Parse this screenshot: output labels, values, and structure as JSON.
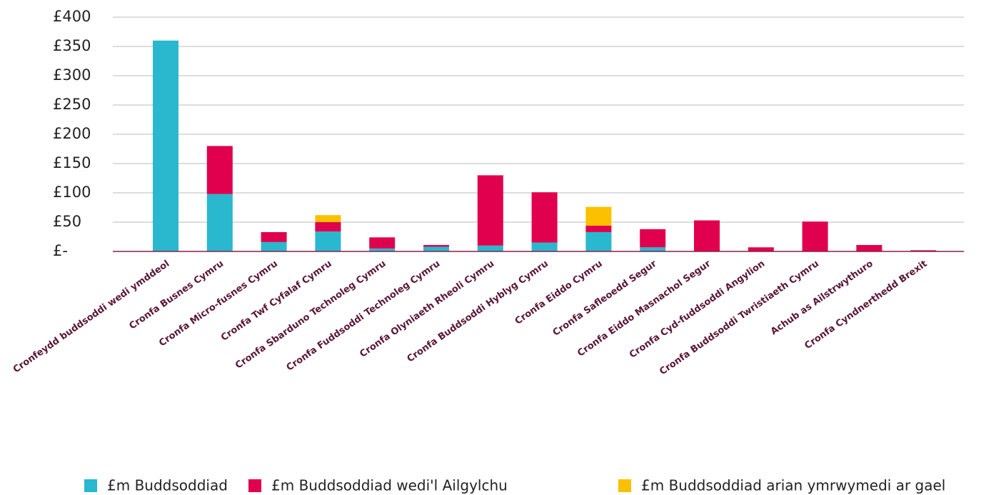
{
  "chart_data": {
    "type": "stacked_bar",
    "categories": [
      "Cronfeydd buddsoddi wedi ymddeol",
      "Cronfa Busnes Cymru",
      "Cronfa Micro-fusnes Cymru",
      "Cronfa Twf Cyfalaf Cymru",
      "Cronfa Sbarduno Technoleg Cymru",
      "Cronfa Fuddsoddi Technoleg Cymru",
      "Cronfa Olyniaeth Rheoli Cymru",
      "Cronfa Buddsoddi Hyblyg Cymru",
      "Cronfa Eiddo Cymru",
      "Cronfa Safleoedd Segur",
      "Cronfa Eiddo Masnachol Segur",
      "Cronfa Cyd-fuddsoddi Angylion",
      "Cronfa Buddsoddi Twristiaeth Cymru",
      "Achub as Ailstrwythuro",
      "Cronfa Cyndnerthedd Brexit"
    ],
    "series": [
      {
        "name": "£m Buddsoddiad",
        "color": "#29b8ce",
        "values": [
          360,
          98,
          16,
          34,
          5,
          8,
          10,
          15,
          33,
          7,
          0,
          0,
          0,
          0,
          0
        ]
      },
      {
        "name": "£m Buddsoddiad wedi'l Ailgylchu",
        "color": "#e0004d",
        "values": [
          0,
          82,
          17,
          16,
          19,
          3,
          120,
          86,
          11,
          31,
          53,
          7,
          51,
          11,
          2
        ]
      },
      {
        "name": "£m Buddsoddiad arian ymrwymedi ar gael",
        "color": "#fcc000",
        "values": [
          0,
          0,
          0,
          12,
          0,
          0,
          0,
          0,
          32,
          0,
          0,
          0,
          0,
          0,
          0
        ]
      }
    ],
    "ylim": [
      0,
      400
    ],
    "yticks": [
      {
        "value": 0,
        "label": "£-"
      },
      {
        "value": 50,
        "label": "£50"
      },
      {
        "value": 100,
        "label": "£100"
      },
      {
        "value": 150,
        "label": "£150"
      },
      {
        "value": 200,
        "label": "£200"
      },
      {
        "value": 250,
        "label": "£250"
      },
      {
        "value": 300,
        "label": "£300"
      },
      {
        "value": 350,
        "label": "£350"
      },
      {
        "value": 400,
        "label": "£400"
      }
    ],
    "grid": true,
    "legend": "bottom"
  }
}
